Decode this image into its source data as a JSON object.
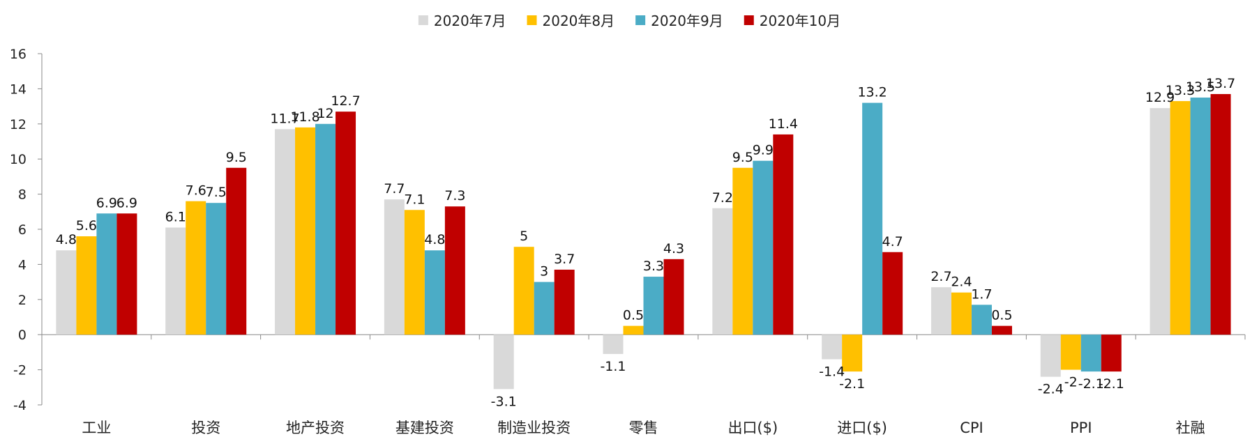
{
  "chart_data": {
    "type": "bar",
    "categories": [
      "工业",
      "投资",
      "地产投资",
      "基建投资",
      "制造业投资",
      "零售",
      "出口($)",
      "进口($)",
      "CPI",
      "PPI",
      "社融"
    ],
    "series": [
      {
        "name": "2020年7月",
        "color": "#d9d9d9",
        "values": [
          4.8,
          6.1,
          11.7,
          7.7,
          -3.1,
          -1.1,
          7.2,
          -1.4,
          2.7,
          -2.4,
          12.9
        ]
      },
      {
        "name": "2020年8月",
        "color": "#ffc000",
        "values": [
          5.6,
          7.6,
          11.8,
          7.1,
          5,
          0.5,
          9.5,
          -2.1,
          2.4,
          -2,
          13.3
        ]
      },
      {
        "name": "2020年9月",
        "color": "#4bacc6",
        "values": [
          6.9,
          7.5,
          12,
          4.8,
          3,
          3.3,
          9.9,
          13.2,
          1.7,
          -2.1,
          13.5
        ]
      },
      {
        "name": "2020年10月",
        "color": "#c00000",
        "values": [
          6.9,
          9.5,
          12.7,
          7.3,
          3.7,
          4.3,
          11.4,
          4.7,
          0.5,
          -2.1,
          13.7
        ]
      }
    ],
    "ylim": [
      -4,
      16
    ],
    "yticks": [
      -4,
      -2,
      0,
      2,
      4,
      6,
      8,
      10,
      12,
      14,
      16
    ],
    "legend_position": "top-center",
    "grid": false,
    "title": "",
    "xlabel": "",
    "ylabel": ""
  }
}
